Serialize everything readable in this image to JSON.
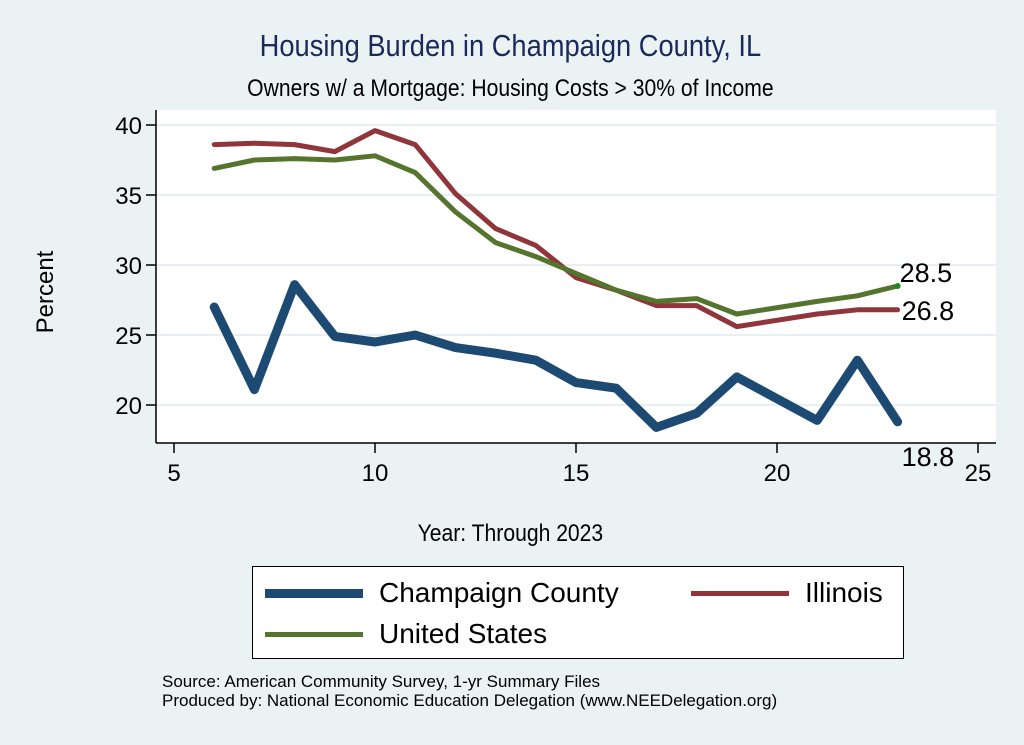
{
  "chart_data": {
    "type": "line",
    "title": "Housing Burden in Champaign County, IL",
    "subtitle": "Owners w/ a Mortgage: Housing Costs > 30% of Income",
    "xlabel": "Year: Through 2023",
    "ylabel": "Percent",
    "xlim": [
      5,
      25
    ],
    "ylim": [
      17.5,
      41
    ],
    "xticks": [
      5,
      10,
      15,
      20,
      25
    ],
    "yticks": [
      20,
      25,
      30,
      35,
      40
    ],
    "grid": true,
    "legend_position": "bottom",
    "series": [
      {
        "name": "Champaign County",
        "color": "#1c4a73",
        "x": [
          6,
          7,
          8,
          9,
          10,
          11,
          12,
          13,
          14,
          15,
          16,
          17,
          18,
          19,
          21,
          22,
          23
        ],
        "values": [
          27.0,
          21.1,
          28.6,
          24.9,
          24.5,
          25.0,
          24.1,
          23.7,
          23.2,
          21.6,
          21.2,
          18.4,
          19.4,
          22.0,
          18.9,
          23.2,
          18.8
        ],
        "end_label": "18.8"
      },
      {
        "name": "Illinois",
        "color": "#90353b",
        "x": [
          6,
          7,
          8,
          9,
          10,
          11,
          12,
          13,
          14,
          15,
          16,
          17,
          18,
          19,
          21,
          22,
          23
        ],
        "values": [
          38.6,
          38.7,
          38.6,
          38.1,
          39.6,
          38.6,
          35.1,
          32.6,
          31.4,
          29.1,
          28.2,
          27.1,
          27.1,
          25.6,
          26.5,
          26.8,
          26.8
        ],
        "end_label": "26.8"
      },
      {
        "name": "United States",
        "color": "#55752f",
        "x": [
          6,
          7,
          8,
          9,
          10,
          11,
          12,
          13,
          14,
          15,
          16,
          17,
          18,
          19,
          21,
          22,
          23
        ],
        "values": [
          36.9,
          37.5,
          37.6,
          37.5,
          37.8,
          36.6,
          33.8,
          31.6,
          30.6,
          29.4,
          28.2,
          27.4,
          27.6,
          26.5,
          27.4,
          27.8,
          28.5
        ],
        "end_label": "28.5"
      }
    ]
  },
  "source": {
    "line1": "Source: American Community Survey, 1-yr Summary Files",
    "line2": "Produced by: National Economic Education Delegation (www.NEEDelegation.org)"
  }
}
